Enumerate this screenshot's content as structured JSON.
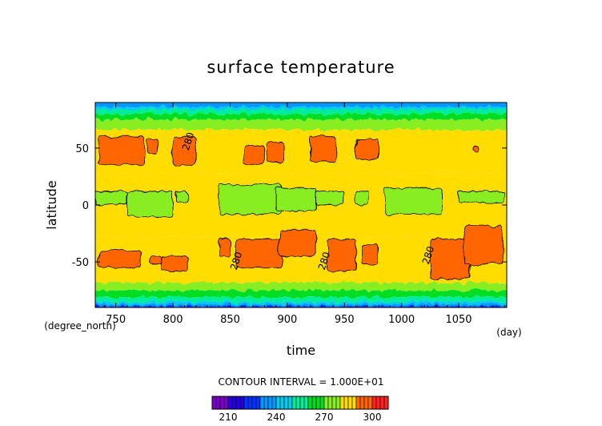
{
  "chart_data": {
    "type": "heatmap",
    "title": "surface temperature",
    "xlabel": "time",
    "ylabel": "latitude",
    "x_unit": "(day)",
    "y_unit": "(degree_north)",
    "xlim": [
      732,
      1092
    ],
    "ylim": [
      -90,
      90
    ],
    "x_ticks": [
      750,
      800,
      850,
      900,
      950,
      1000,
      1050
    ],
    "y_ticks": [
      50,
      0,
      -50
    ],
    "contour_interval_text": "CONTOUR INTERVAL = 1.000E+01",
    "contour_labels": [
      {
        "text": "280",
        "x": 816,
        "y": 55
      },
      {
        "text": "280",
        "x": 858,
        "y": -50
      },
      {
        "text": "280",
        "x": 935,
        "y": -50
      },
      {
        "text": "280",
        "x": 1026,
        "y": -45
      }
    ],
    "colorbar": {
      "levels": [
        200,
        210,
        220,
        230,
        240,
        250,
        260,
        270,
        280,
        290,
        300,
        310
      ],
      "colors": [
        "#7a00c8",
        "#2200e0",
        "#0033ff",
        "#0099ff",
        "#00ccee",
        "#00ee99",
        "#00dd22",
        "#88ee22",
        "#ffdd00",
        "#ff6600",
        "#ff2222",
        "#ff9999"
      ],
      "tick_labels": [
        "210",
        "240",
        "270",
        "300"
      ],
      "tick_values": [
        210,
        240,
        270,
        300
      ]
    },
    "warm_patches": [
      {
        "x0": 735,
        "x1": 775,
        "lat0": 35,
        "lat1": 60
      },
      {
        "x0": 778,
        "x1": 787,
        "lat0": 45,
        "lat1": 58
      },
      {
        "x0": 800,
        "x1": 820,
        "lat0": 35,
        "lat1": 60
      },
      {
        "x0": 862,
        "x1": 880,
        "lat0": 35,
        "lat1": 52
      },
      {
        "x0": 882,
        "x1": 897,
        "lat0": 38,
        "lat1": 55
      },
      {
        "x0": 920,
        "x1": 942,
        "lat0": 38,
        "lat1": 60
      },
      {
        "x0": 960,
        "x1": 980,
        "lat0": 40,
        "lat1": 58
      },
      {
        "x0": 1063,
        "x1": 1067,
        "lat0": 47,
        "lat1": 52
      },
      {
        "x0": 735,
        "x1": 772,
        "lat0": -55,
        "lat1": -40
      },
      {
        "x0": 780,
        "x1": 790,
        "lat0": -52,
        "lat1": -45
      },
      {
        "x0": 790,
        "x1": 813,
        "lat0": -58,
        "lat1": -45
      },
      {
        "x0": 840,
        "x1": 850,
        "lat0": -45,
        "lat1": -30
      },
      {
        "x0": 855,
        "x1": 895,
        "lat0": -55,
        "lat1": -30
      },
      {
        "x0": 893,
        "x1": 925,
        "lat0": -45,
        "lat1": -22
      },
      {
        "x0": 935,
        "x1": 960,
        "lat0": -58,
        "lat1": -30
      },
      {
        "x0": 965,
        "x1": 980,
        "lat0": -52,
        "lat1": -35
      },
      {
        "x0": 1025,
        "x1": 1060,
        "lat0": -65,
        "lat1": -30
      },
      {
        "x0": 1055,
        "x1": 1088,
        "lat0": -52,
        "lat1": -18
      }
    ],
    "cool_patches": [
      {
        "x0": 732,
        "x1": 760,
        "lat0": 0,
        "lat1": 12
      },
      {
        "x0": 760,
        "x1": 800,
        "lat0": -10,
        "lat1": 12
      },
      {
        "x0": 803,
        "x1": 812,
        "lat0": 2,
        "lat1": 12
      },
      {
        "x0": 840,
        "x1": 895,
        "lat0": -8,
        "lat1": 18
      },
      {
        "x0": 890,
        "x1": 925,
        "lat0": -5,
        "lat1": 15
      },
      {
        "x0": 925,
        "x1": 950,
        "lat0": 0,
        "lat1": 12
      },
      {
        "x0": 960,
        "x1": 972,
        "lat0": 0,
        "lat1": 12
      },
      {
        "x0": 985,
        "x1": 1035,
        "lat0": -8,
        "lat1": 15
      },
      {
        "x0": 1050,
        "x1": 1090,
        "lat0": 2,
        "lat1": 12
      }
    ]
  }
}
